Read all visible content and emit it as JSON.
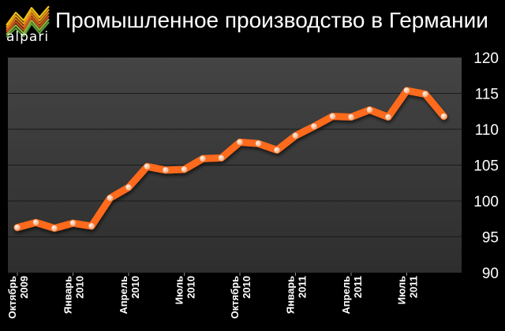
{
  "brand": {
    "logo_text": "alpari"
  },
  "colors": {
    "background": "#000000",
    "plot_area": "#3a3a3a",
    "line": "#ff6a1a",
    "marker": "#ffd1ad",
    "grid": "#1a1a1a"
  },
  "chart_data": {
    "type": "line",
    "title": "Промышленное производство в Германии",
    "xlabel": "",
    "ylabel": "",
    "ylim": [
      90,
      120
    ],
    "y_ticks": [
      90,
      95,
      100,
      105,
      110,
      115,
      120
    ],
    "y_axis_side": "right",
    "grid": true,
    "x_tick_labels": [
      {
        "index": 0,
        "line1": "Октябрь",
        "line2": "2009"
      },
      {
        "index": 3,
        "line1": "Январь",
        "line2": "2010"
      },
      {
        "index": 6,
        "line1": "Апрель",
        "line2": "2010"
      },
      {
        "index": 9,
        "line1": "Июль",
        "line2": "2010"
      },
      {
        "index": 12,
        "line1": "Октябрь",
        "line2": "2010"
      },
      {
        "index": 15,
        "line1": "Январь",
        "line2": "2011"
      },
      {
        "index": 18,
        "line1": "Апрель",
        "line2": "2011"
      },
      {
        "index": 21,
        "line1": "Июль",
        "line2": "2011"
      }
    ],
    "series": [
      {
        "values": [
          96.3,
          97.0,
          96.2,
          96.9,
          96.5,
          100.4,
          101.9,
          104.8,
          104.3,
          104.4,
          105.9,
          106.0,
          108.2,
          108.0,
          107.1,
          109.1,
          110.4,
          111.8,
          111.7,
          112.7,
          111.7,
          115.4,
          114.9,
          111.8
        ]
      }
    ]
  }
}
